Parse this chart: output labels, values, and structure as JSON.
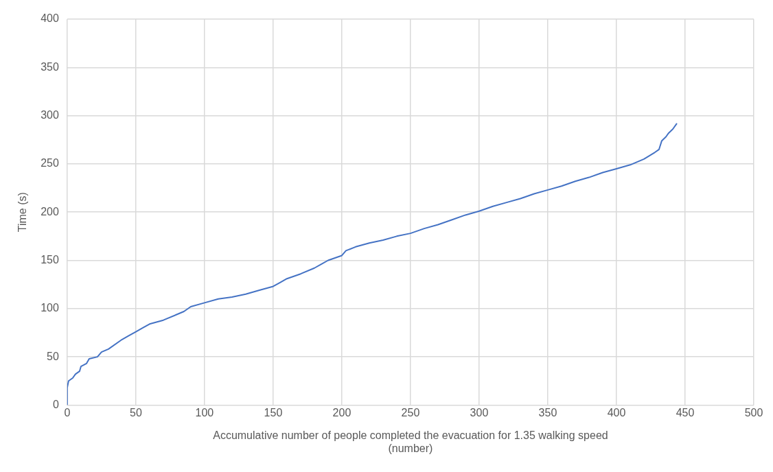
{
  "chart_data": {
    "type": "line",
    "xlabel": "Accumulative number of people completed the evacuation for 1.35 walking speed (number)",
    "ylabel": "Time (s)",
    "x": [
      0,
      0,
      1,
      4,
      6,
      9,
      10,
      14,
      16,
      22,
      25,
      30,
      40,
      45,
      50,
      55,
      60,
      70,
      80,
      85,
      90,
      100,
      110,
      120,
      130,
      140,
      150,
      155,
      160,
      170,
      180,
      185,
      190,
      200,
      203,
      210,
      220,
      230,
      240,
      250,
      260,
      270,
      280,
      290,
      300,
      310,
      320,
      330,
      340,
      350,
      360,
      370,
      380,
      390,
      400,
      410,
      420,
      428,
      431,
      433,
      436,
      438,
      441,
      444
    ],
    "series": [
      {
        "color": "#4472c4",
        "values": [
          0,
          18,
          25,
          28,
          32,
          35,
          40,
          43,
          48,
          50,
          55,
          58,
          68,
          72,
          76,
          80,
          84,
          88,
          94,
          97,
          102,
          106,
          110,
          112,
          115,
          119,
          123,
          127,
          131,
          136,
          142,
          146,
          150,
          155,
          160,
          164,
          168,
          171,
          175,
          178,
          183,
          187,
          192,
          197,
          201,
          206,
          210,
          214,
          219,
          223,
          227,
          232,
          236,
          241,
          245,
          249,
          255,
          262,
          265,
          274,
          278,
          282,
          286,
          292
        ]
      }
    ],
    "xlim": [
      0,
      500
    ],
    "xticks": [
      0,
      50,
      100,
      150,
      200,
      250,
      300,
      350,
      400,
      450,
      500
    ],
    "ylim": [
      0,
      400
    ],
    "yticks": [
      0,
      50,
      100,
      150,
      200,
      250,
      300,
      350,
      400
    ],
    "grid": true,
    "legend": false,
    "marker": "none",
    "line_style": "solid"
  }
}
